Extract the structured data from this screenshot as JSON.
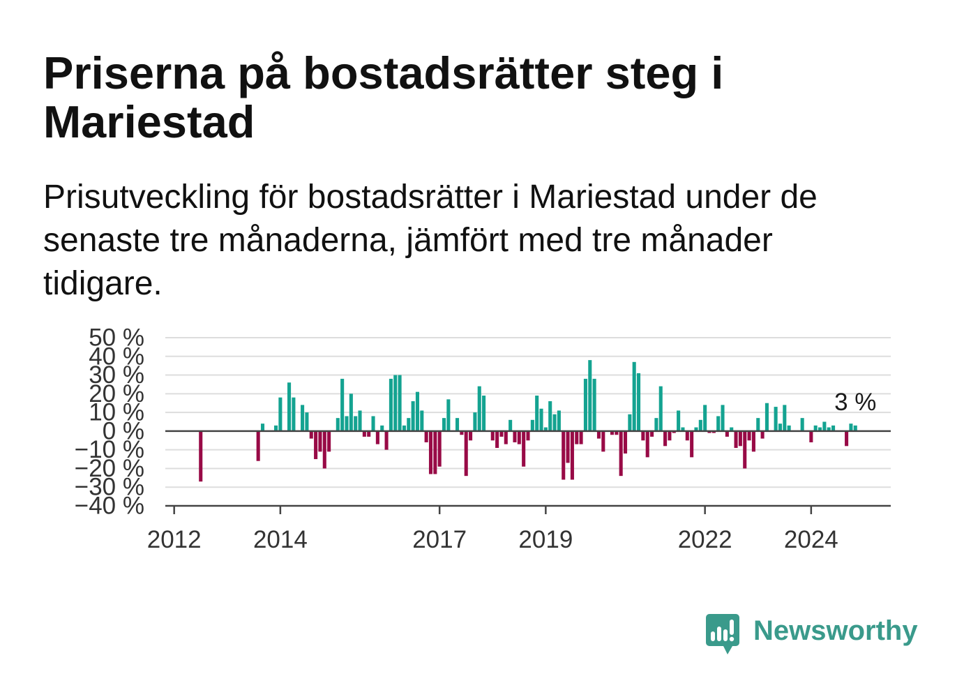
{
  "title": "Priserna på bostadsrätter steg i Mariestad",
  "subtitle": "Prisutveckling för bostadsrätter i Mariestad under de senaste tre månaderna, jämfört med tre månader tidigare.",
  "logo": {
    "text": "Newsworthy",
    "icon": "newsworthy-logo-icon"
  },
  "colors": {
    "positive": "#14a391",
    "negative": "#980a46",
    "grid": "#dddddd",
    "axis": "#444444",
    "brand": "#3a9a8b"
  },
  "chart_data": {
    "type": "bar",
    "xlim": [
      "2011-11",
      "2025-07"
    ],
    "ylim": [
      -40,
      50
    ],
    "grid": true,
    "yticks": [
      50,
      40,
      30,
      20,
      10,
      0,
      -10,
      -20,
      -30,
      -40
    ],
    "ytick_labels": [
      "50 %",
      "40 %",
      "30 %",
      "20 %",
      "10 %",
      "0 %",
      "−10 %",
      "−20 %",
      "−30 %",
      "−40 %"
    ],
    "xticks": [
      "2012-01",
      "2014-01",
      "2017-01",
      "2019-01",
      "2022-01",
      "2024-01"
    ],
    "xtick_labels": [
      "2012",
      "2014",
      "2017",
      "2019",
      "2022",
      "2024"
    ],
    "x": [
      "2012-07",
      "2013-08",
      "2013-09",
      "2013-12",
      "2014-01",
      "2014-03",
      "2014-04",
      "2014-06",
      "2014-07",
      "2014-08",
      "2014-09",
      "2014-10",
      "2014-11",
      "2014-12",
      "2015-02",
      "2015-03",
      "2015-04",
      "2015-05",
      "2015-06",
      "2015-07",
      "2015-08",
      "2015-09",
      "2015-10",
      "2015-11",
      "2015-12",
      "2016-01",
      "2016-02",
      "2016-03",
      "2016-04",
      "2016-05",
      "2016-06",
      "2016-07",
      "2016-08",
      "2016-09",
      "2016-10",
      "2016-11",
      "2016-12",
      "2017-01",
      "2017-02",
      "2017-03",
      "2017-05",
      "2017-06",
      "2017-07",
      "2017-08",
      "2017-09",
      "2017-10",
      "2017-11",
      "2018-01",
      "2018-02",
      "2018-03",
      "2018-04",
      "2018-05",
      "2018-06",
      "2018-07",
      "2018-08",
      "2018-09",
      "2018-10",
      "2018-11",
      "2018-12",
      "2019-01",
      "2019-02",
      "2019-03",
      "2019-04",
      "2019-05",
      "2019-06",
      "2019-07",
      "2019-08",
      "2019-09",
      "2019-10",
      "2019-11",
      "2019-12",
      "2020-01",
      "2020-02",
      "2020-04",
      "2020-05",
      "2020-06",
      "2020-07",
      "2020-08",
      "2020-09",
      "2020-10",
      "2020-11",
      "2020-12",
      "2021-01",
      "2021-02",
      "2021-03",
      "2021-04",
      "2021-05",
      "2021-06",
      "2021-07",
      "2021-08",
      "2021-09",
      "2021-10",
      "2021-11",
      "2021-12",
      "2022-01",
      "2022-02",
      "2022-03",
      "2022-04",
      "2022-05",
      "2022-06",
      "2022-07",
      "2022-08",
      "2022-09",
      "2022-10",
      "2022-11",
      "2022-12",
      "2023-01",
      "2023-02",
      "2023-03",
      "2023-05",
      "2023-06",
      "2023-07",
      "2023-08",
      "2023-11",
      "2024-01",
      "2024-02",
      "2024-03",
      "2024-04",
      "2024-05",
      "2024-06",
      "2024-09",
      "2024-10",
      "2024-11"
    ],
    "values": [
      -27,
      -16,
      4,
      3,
      18,
      26,
      18,
      14,
      10,
      -4,
      -15,
      -11,
      -20,
      -11,
      7,
      28,
      8,
      20,
      8,
      11,
      -3,
      -3,
      8,
      -7,
      3,
      -10,
      28,
      30,
      30,
      3,
      7,
      16,
      21,
      11,
      -6,
      -23,
      -23,
      -19,
      7,
      17,
      7,
      -2,
      -24,
      -5,
      10,
      24,
      19,
      -5,
      -9,
      -3,
      -7,
      6,
      -6,
      -7,
      -19,
      -5,
      6,
      19,
      12,
      2,
      16,
      9,
      11,
      -26,
      -17,
      -26,
      -7,
      -7,
      28,
      38,
      28,
      -4,
      -11,
      -2,
      -2,
      -24,
      -12,
      9,
      37,
      31,
      -5,
      -14,
      -3,
      7,
      24,
      -8,
      -5,
      -1,
      11,
      2,
      -5,
      -14,
      2,
      6,
      14,
      -1,
      -1,
      8,
      14,
      -3,
      2,
      -9,
      -8,
      -20,
      -5,
      -11,
      7,
      -4,
      15,
      13,
      4,
      14,
      3,
      7,
      -6,
      3,
      2,
      5,
      2,
      3,
      -8,
      4,
      3
    ],
    "annotation": {
      "x": "2024-11",
      "y": 3,
      "text": "3 %"
    }
  }
}
